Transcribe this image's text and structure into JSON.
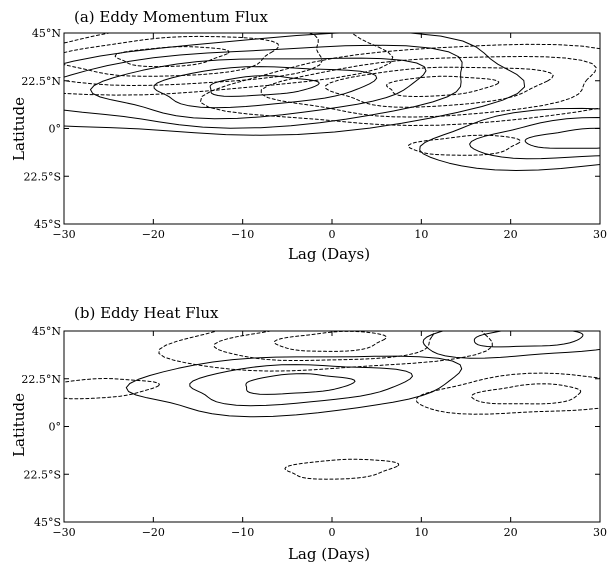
{
  "chart_data": [
    {
      "type": "contour",
      "title": "(a) Eddy Momentum Flux",
      "xlabel": "Lag (Days)",
      "ylabel": "Latitude",
      "xlim": [
        -30,
        30
      ],
      "ylim": [
        -45,
        45
      ],
      "x_ticks": [
        "−30",
        "−20",
        "−10",
        "0",
        "10",
        "20",
        "30"
      ],
      "y_ticks": [
        "45°N",
        "22.5°N",
        "0°",
        "22.5°S",
        "45°S"
      ],
      "line_styles": {
        "positive": "solid",
        "negative": "dashed"
      },
      "features": [
        {
          "sign": "positive",
          "center_lag": -8,
          "center_lat": 20,
          "levels": 5
        },
        {
          "sign": "negative",
          "center_lag": 12,
          "center_lat": 20,
          "levels": 4
        },
        {
          "sign": "negative",
          "center_lag": -18,
          "center_lat": 34,
          "levels": 4
        },
        {
          "sign": "negative",
          "center_lag": 15,
          "center_lat": -8,
          "levels": 1
        },
        {
          "sign": "positive",
          "center_lag": 28,
          "center_lat": -5,
          "levels": 3
        }
      ]
    },
    {
      "type": "contour",
      "title": "(b) Eddy Heat Flux",
      "xlabel": "Lag (Days)",
      "ylabel": "Latitude",
      "xlim": [
        -30,
        30
      ],
      "ylim": [
        -45,
        45
      ],
      "x_ticks": [
        "−30",
        "−20",
        "−10",
        "0",
        "10",
        "20",
        "30"
      ],
      "y_ticks": [
        "45°N",
        "22.5°N",
        "0°",
        "22.5°S",
        "45°S"
      ],
      "line_styles": {
        "positive": "solid",
        "negative": "dashed"
      },
      "features": [
        {
          "sign": "positive",
          "center_lag": -4,
          "center_lat": 20,
          "levels": 3
        },
        {
          "sign": "negative",
          "center_lag": -26,
          "center_lat": 18,
          "levels": 1
        },
        {
          "sign": "negative",
          "center_lag": 1,
          "center_lat": -20,
          "levels": 1
        },
        {
          "sign": "negative",
          "center_lag": 0,
          "center_lat": 40,
          "levels": 3
        },
        {
          "sign": "negative",
          "center_lag": 22,
          "center_lat": 15,
          "levels": 2
        },
        {
          "sign": "positive",
          "center_lag": 22,
          "center_lat": 42,
          "levels": 2
        }
      ]
    }
  ]
}
